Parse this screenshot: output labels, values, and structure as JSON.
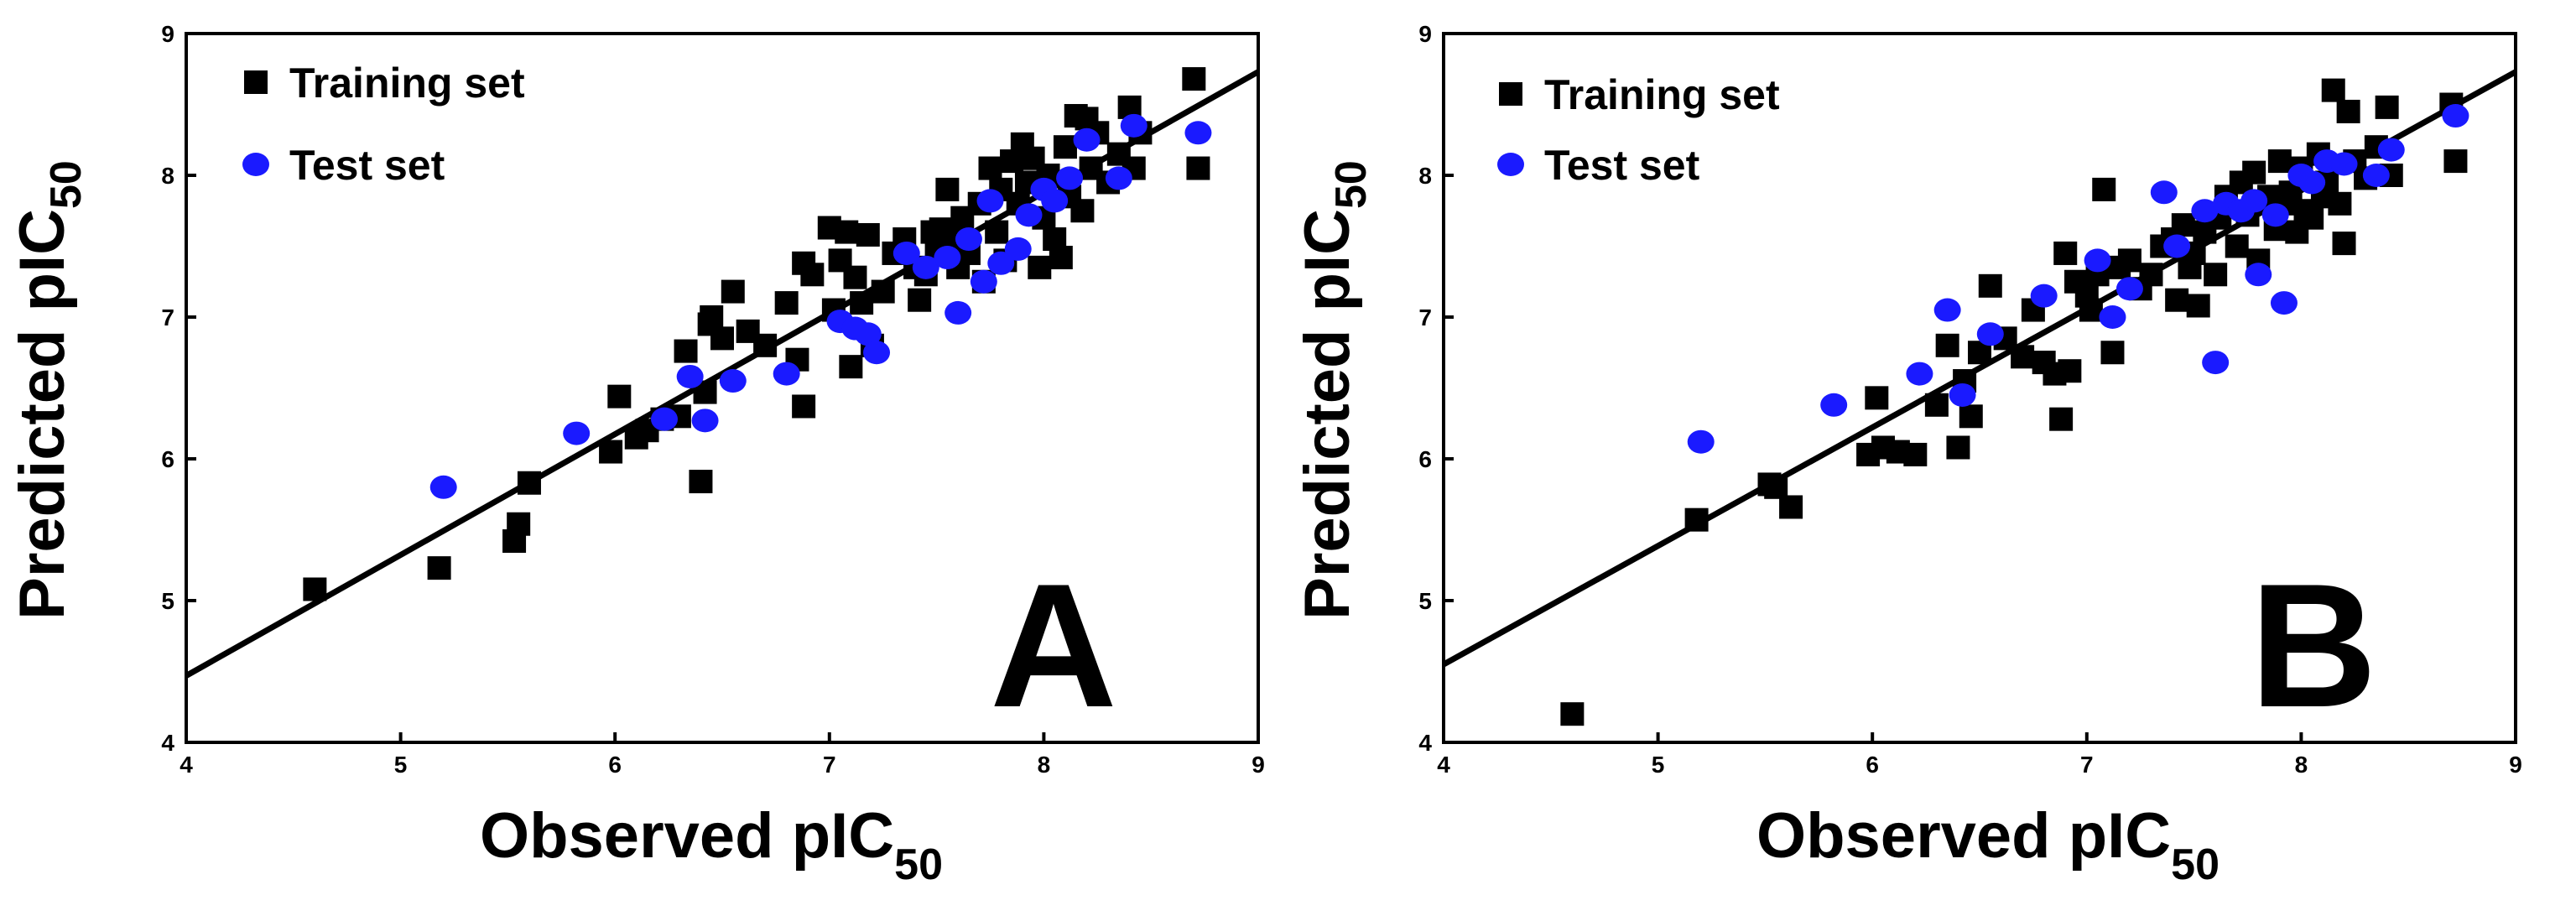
{
  "colors": {
    "training": "#000000",
    "test": "#1a1aff",
    "axis": "#000000",
    "background": "#ffffff"
  },
  "chart_data": [
    {
      "type": "scatter",
      "panel_label": "A",
      "xlabel": "Observed pIC",
      "xlabel_sub": "50",
      "ylabel": "Predicted pIC",
      "ylabel_sub": "50",
      "xlim": [
        4,
        9
      ],
      "ylim": [
        4,
        9
      ],
      "xticks": [
        "4",
        "5",
        "6",
        "7",
        "8",
        "9"
      ],
      "yticks": [
        "4",
        "5",
        "6",
        "7",
        "8",
        "9"
      ],
      "legend_position": "top-left",
      "fit_line": {
        "x": [
          4,
          9
        ],
        "y": [
          4.47,
          8.73
        ]
      },
      "series": [
        {
          "name": "Training set",
          "marker": "square",
          "color": "#000000",
          "points": [
            [
              4.6,
              5.08
            ],
            [
              5.18,
              5.23
            ],
            [
              5.53,
              5.42
            ],
            [
              5.55,
              5.54
            ],
            [
              5.6,
              5.83
            ],
            [
              5.98,
              6.05
            ],
            [
              6.02,
              6.44
            ],
            [
              6.1,
              6.15
            ],
            [
              6.15,
              6.2
            ],
            [
              6.22,
              6.28
            ],
            [
              6.3,
              6.3
            ],
            [
              6.33,
              6.76
            ],
            [
              6.4,
              5.84
            ],
            [
              6.42,
              6.47
            ],
            [
              6.44,
              6.95
            ],
            [
              6.45,
              7.0
            ],
            [
              6.5,
              6.85
            ],
            [
              6.55,
              7.18
            ],
            [
              6.62,
              6.9
            ],
            [
              6.7,
              6.8
            ],
            [
              6.8,
              7.1
            ],
            [
              6.85,
              6.7
            ],
            [
              6.88,
              6.37
            ],
            [
              6.88,
              7.38
            ],
            [
              6.92,
              7.3
            ],
            [
              7.0,
              7.63
            ],
            [
              7.02,
              7.05
            ],
            [
              7.05,
              7.4
            ],
            [
              7.08,
              7.6
            ],
            [
              7.1,
              6.65
            ],
            [
              7.12,
              7.28
            ],
            [
              7.15,
              7.1
            ],
            [
              7.18,
              7.58
            ],
            [
              7.2,
              6.8
            ],
            [
              7.25,
              7.18
            ],
            [
              7.3,
              7.45
            ],
            [
              7.35,
              7.55
            ],
            [
              7.4,
              7.35
            ],
            [
              7.42,
              7.12
            ],
            [
              7.45,
              7.3
            ],
            [
              7.48,
              7.6
            ],
            [
              7.5,
              7.45
            ],
            [
              7.52,
              7.62
            ],
            [
              7.55,
              7.9
            ],
            [
              7.58,
              7.55
            ],
            [
              7.6,
              7.35
            ],
            [
              7.62,
              7.7
            ],
            [
              7.65,
              7.45
            ],
            [
              7.7,
              7.8
            ],
            [
              7.72,
              7.25
            ],
            [
              7.75,
              8.05
            ],
            [
              7.78,
              7.6
            ],
            [
              7.8,
              7.9
            ],
            [
              7.82,
              7.4
            ],
            [
              7.85,
              8.1
            ],
            [
              7.88,
              7.8
            ],
            [
              7.9,
              8.22
            ],
            [
              7.92,
              7.95
            ],
            [
              7.95,
              8.12
            ],
            [
              7.98,
              7.35
            ],
            [
              8.0,
              7.7
            ],
            [
              8.02,
              8.0
            ],
            [
              8.05,
              7.55
            ],
            [
              8.08,
              7.42
            ],
            [
              8.1,
              8.2
            ],
            [
              8.12,
              7.85
            ],
            [
              8.15,
              8.42
            ],
            [
              8.18,
              7.75
            ],
            [
              8.2,
              8.4
            ],
            [
              8.22,
              8.05
            ],
            [
              8.25,
              8.3
            ],
            [
              8.3,
              7.95
            ],
            [
              8.35,
              8.15
            ],
            [
              8.4,
              8.48
            ],
            [
              8.42,
              8.05
            ],
            [
              8.45,
              8.3
            ],
            [
              8.7,
              8.68
            ],
            [
              8.72,
              8.05
            ]
          ]
        },
        {
          "name": "Test set",
          "marker": "circle",
          "color": "#1a1aff",
          "points": [
            [
              5.2,
              5.8
            ],
            [
              5.82,
              6.18
            ],
            [
              6.23,
              6.28
            ],
            [
              6.35,
              6.58
            ],
            [
              6.42,
              6.27
            ],
            [
              6.55,
              6.55
            ],
            [
              6.8,
              6.6
            ],
            [
              7.05,
              6.97
            ],
            [
              7.12,
              6.92
            ],
            [
              7.18,
              6.88
            ],
            [
              7.22,
              6.75
            ],
            [
              7.36,
              7.45
            ],
            [
              7.45,
              7.35
            ],
            [
              7.55,
              7.42
            ],
            [
              7.6,
              7.03
            ],
            [
              7.65,
              7.55
            ],
            [
              7.72,
              7.25
            ],
            [
              7.75,
              7.82
            ],
            [
              7.8,
              7.38
            ],
            [
              7.88,
              7.48
            ],
            [
              7.93,
              7.72
            ],
            [
              8.0,
              7.9
            ],
            [
              8.05,
              7.82
            ],
            [
              8.12,
              7.98
            ],
            [
              8.2,
              8.25
            ],
            [
              8.35,
              7.98
            ],
            [
              8.42,
              8.35
            ],
            [
              8.72,
              8.3
            ]
          ]
        }
      ]
    },
    {
      "type": "scatter",
      "panel_label": "B",
      "xlabel": "Observed pIC",
      "xlabel_sub": "50",
      "ylabel": "Predicted pIC",
      "ylabel_sub": "50",
      "xlim": [
        4,
        9
      ],
      "ylim": [
        4,
        9
      ],
      "xticks": [
        "4",
        "5",
        "6",
        "7",
        "8",
        "9"
      ],
      "yticks": [
        "4",
        "5",
        "6",
        "7",
        "8",
        "9"
      ],
      "legend_position": "top-left",
      "fit_line": {
        "x": [
          4,
          9
        ],
        "y": [
          4.55,
          8.73
        ]
      },
      "series": [
        {
          "name": "Training set",
          "marker": "square",
          "color": "#000000",
          "points": [
            [
              4.6,
              4.2
            ],
            [
              5.18,
              5.57
            ],
            [
              5.52,
              5.82
            ],
            [
              5.55,
              5.8
            ],
            [
              5.62,
              5.66
            ],
            [
              5.98,
              6.03
            ],
            [
              6.02,
              6.43
            ],
            [
              6.05,
              6.08
            ],
            [
              6.12,
              6.05
            ],
            [
              6.2,
              6.03
            ],
            [
              6.3,
              6.38
            ],
            [
              6.35,
              6.8
            ],
            [
              6.4,
              6.08
            ],
            [
              6.43,
              6.55
            ],
            [
              6.46,
              6.3
            ],
            [
              6.5,
              6.75
            ],
            [
              6.55,
              7.22
            ],
            [
              6.62,
              6.85
            ],
            [
              6.7,
              6.72
            ],
            [
              6.75,
              7.05
            ],
            [
              6.8,
              6.68
            ],
            [
              6.85,
              6.6
            ],
            [
              6.88,
              6.28
            ],
            [
              6.9,
              7.45
            ],
            [
              6.92,
              6.62
            ],
            [
              6.95,
              7.25
            ],
            [
              7.0,
              7.15
            ],
            [
              7.02,
              7.05
            ],
            [
              7.05,
              7.3
            ],
            [
              7.08,
              7.9
            ],
            [
              7.12,
              6.75
            ],
            [
              7.15,
              7.35
            ],
            [
              7.2,
              7.4
            ],
            [
              7.25,
              7.2
            ],
            [
              7.3,
              7.3
            ],
            [
              7.35,
              7.5
            ],
            [
              7.4,
              7.55
            ],
            [
              7.42,
              7.12
            ],
            [
              7.45,
              7.65
            ],
            [
              7.48,
              7.35
            ],
            [
              7.5,
              7.45
            ],
            [
              7.52,
              7.08
            ],
            [
              7.55,
              7.6
            ],
            [
              7.6,
              7.3
            ],
            [
              7.62,
              7.7
            ],
            [
              7.65,
              7.85
            ],
            [
              7.7,
              7.5
            ],
            [
              7.72,
              7.95
            ],
            [
              7.75,
              7.72
            ],
            [
              7.78,
              8.02
            ],
            [
              7.8,
              7.4
            ],
            [
              7.85,
              7.85
            ],
            [
              7.88,
              7.62
            ],
            [
              7.9,
              8.1
            ],
            [
              7.92,
              7.8
            ],
            [
              7.95,
              7.88
            ],
            [
              7.98,
              7.6
            ],
            [
              8.0,
              8.05
            ],
            [
              8.02,
              7.75
            ],
            [
              8.05,
              7.7
            ],
            [
              8.08,
              8.15
            ],
            [
              8.1,
              7.85
            ],
            [
              8.12,
              7.95
            ],
            [
              8.15,
              8.6
            ],
            [
              8.18,
              7.8
            ],
            [
              8.2,
              7.52
            ],
            [
              8.22,
              8.45
            ],
            [
              8.25,
              8.1
            ],
            [
              8.3,
              7.98
            ],
            [
              8.35,
              8.2
            ],
            [
              8.4,
              8.48
            ],
            [
              8.42,
              8.0
            ],
            [
              8.7,
              8.5
            ],
            [
              8.72,
              8.1
            ]
          ]
        },
        {
          "name": "Test set",
          "marker": "circle",
          "color": "#1a1aff",
          "points": [
            [
              5.2,
              6.12
            ],
            [
              5.82,
              6.38
            ],
            [
              6.22,
              6.6
            ],
            [
              6.35,
              7.05
            ],
            [
              6.42,
              6.45
            ],
            [
              6.55,
              6.88
            ],
            [
              6.8,
              7.15
            ],
            [
              7.05,
              7.4
            ],
            [
              7.12,
              7.0
            ],
            [
              7.2,
              7.2
            ],
            [
              7.36,
              7.88
            ],
            [
              7.42,
              7.5
            ],
            [
              7.55,
              7.75
            ],
            [
              7.6,
              6.68
            ],
            [
              7.65,
              7.8
            ],
            [
              7.72,
              7.75
            ],
            [
              7.78,
              7.82
            ],
            [
              7.8,
              7.3
            ],
            [
              7.88,
              7.72
            ],
            [
              7.92,
              7.1
            ],
            [
              8.0,
              8.0
            ],
            [
              8.05,
              7.95
            ],
            [
              8.12,
              8.1
            ],
            [
              8.2,
              8.08
            ],
            [
              8.35,
              8.0
            ],
            [
              8.42,
              8.18
            ],
            [
              8.72,
              8.42
            ]
          ]
        }
      ]
    }
  ]
}
